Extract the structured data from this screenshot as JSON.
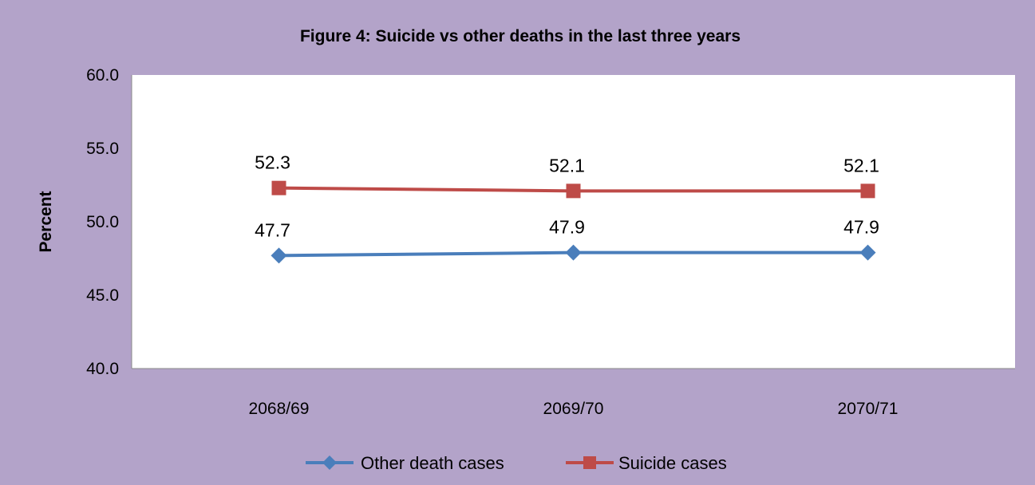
{
  "chart_data": {
    "type": "line",
    "title": "Figure 4: Suicide vs other deaths in the last three years",
    "xlabel": "",
    "ylabel": "Percent",
    "categories": [
      "2068/69",
      "2069/70",
      "2070/71"
    ],
    "ylim": [
      40.0,
      60.0
    ],
    "yticks": [
      "40.0",
      "45.0",
      "50.0",
      "55.0",
      "60.0"
    ],
    "grid": false,
    "legend_position": "bottom",
    "series": [
      {
        "name": "Other death cases",
        "values": [
          47.7,
          47.9,
          47.9
        ],
        "labels": [
          "47.7",
          "47.9",
          "47.9"
        ],
        "color": "#4a7ebb",
        "marker": "diamond"
      },
      {
        "name": "Suicide cases",
        "values": [
          52.3,
          52.1,
          52.1
        ],
        "labels": [
          "52.3",
          "52.1",
          "52.1"
        ],
        "color": "#be4b48",
        "marker": "square"
      }
    ],
    "background_color": "#b3a3c9",
    "plot_background_color": "#ffffff"
  }
}
